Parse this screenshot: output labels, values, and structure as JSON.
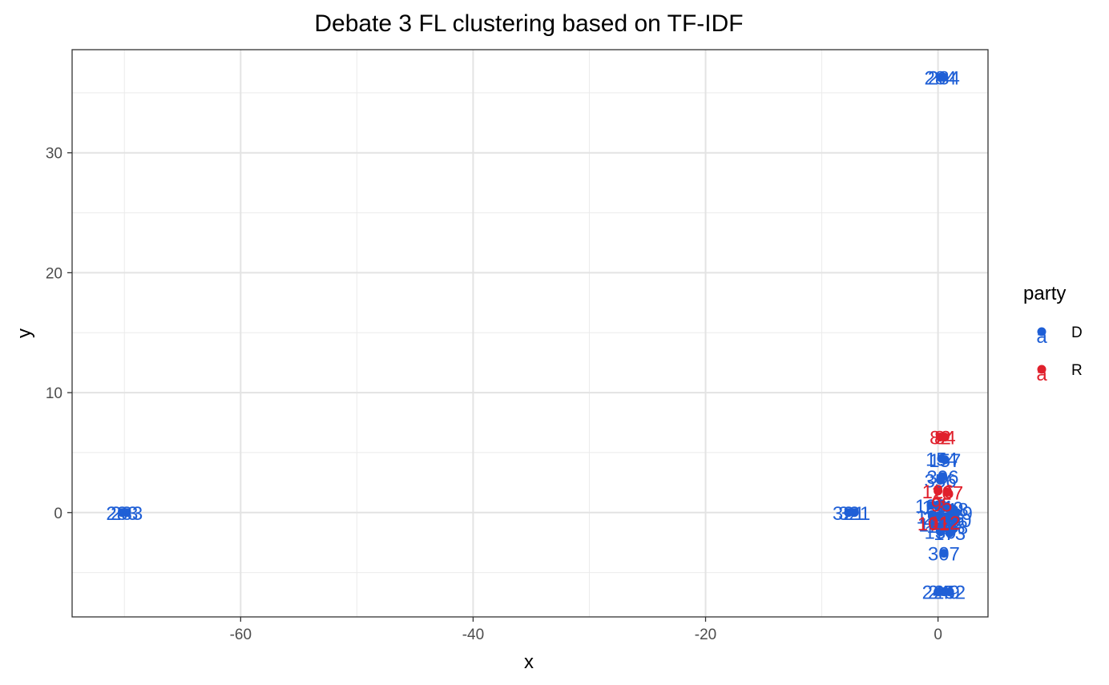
{
  "chart_data": {
    "type": "scatter",
    "title": "Debate 3 FL clustering based on TF-IDF",
    "xlabel": "x",
    "ylabel": "y",
    "xlim": [
      -74.5,
      4.3
    ],
    "ylim": [
      -8.7,
      38.6
    ],
    "x_ticks": [
      -60,
      -40,
      -20,
      0
    ],
    "y_ticks": [
      0,
      10,
      20,
      30
    ],
    "grid": true,
    "legend": {
      "title": "party",
      "position": "right",
      "entries": [
        {
          "name": "D",
          "color": "#1f5fd6"
        },
        {
          "name": "R",
          "color": "#e0202c"
        }
      ]
    },
    "series": [
      {
        "name": "D",
        "color": "#1f5fd6",
        "points": [
          {
            "x": 0.2,
            "y": 36.3,
            "label": "284"
          },
          {
            "x": 0.5,
            "y": 36.3,
            "label": "284"
          },
          {
            "x": -70.2,
            "y": 0.0,
            "label": "283"
          },
          {
            "x": -69.8,
            "y": 0.0,
            "label": "283"
          },
          {
            "x": -7.7,
            "y": 0.0,
            "label": "321"
          },
          {
            "x": -7.2,
            "y": 0.0,
            "label": "321"
          },
          {
            "x": 0.3,
            "y": 4.5,
            "label": "154"
          },
          {
            "x": 0.6,
            "y": 4.4,
            "label": "157"
          },
          {
            "x": 0.4,
            "y": 3.0,
            "label": "306"
          },
          {
            "x": 0.2,
            "y": 2.7,
            "label": "356"
          },
          {
            "x": 0.5,
            "y": -3.4,
            "label": "307"
          },
          {
            "x": 0.0,
            "y": -6.6,
            "label": "244"
          },
          {
            "x": 0.5,
            "y": -6.6,
            "label": "249"
          },
          {
            "x": 1.0,
            "y": -6.6,
            "label": "252"
          },
          {
            "x": -0.6,
            "y": 0.6,
            "label": "120"
          },
          {
            "x": 0.0,
            "y": 0.5,
            "label": "131"
          },
          {
            "x": 0.8,
            "y": 0.4,
            "label": "210"
          },
          {
            "x": 1.3,
            "y": 0.3,
            "label": "118"
          },
          {
            "x": -0.5,
            "y": -0.3,
            "label": "195"
          },
          {
            "x": 0.1,
            "y": -0.4,
            "label": "236"
          },
          {
            "x": 0.9,
            "y": -0.5,
            "label": "276"
          },
          {
            "x": 1.5,
            "y": -0.6,
            "label": "300"
          },
          {
            "x": -0.3,
            "y": -1.0,
            "label": "142"
          },
          {
            "x": 0.4,
            "y": -1.1,
            "label": "168"
          },
          {
            "x": 1.2,
            "y": -1.2,
            "label": "188"
          },
          {
            "x": 0.2,
            "y": -1.6,
            "label": "139"
          },
          {
            "x": 1.0,
            "y": -1.7,
            "label": "173"
          },
          {
            "x": 1.6,
            "y": 0.0,
            "label": "319"
          }
        ]
      },
      {
        "name": "R",
        "color": "#e0202c",
        "points": [
          {
            "x": 0.2,
            "y": 6.3,
            "label": "82"
          },
          {
            "x": 0.6,
            "y": 6.3,
            "label": "84"
          },
          {
            "x": 0.0,
            "y": 1.8,
            "label": "126"
          },
          {
            "x": 0.8,
            "y": 1.7,
            "label": "107"
          },
          {
            "x": 0.3,
            "y": 0.7,
            "label": "95"
          },
          {
            "x": -0.4,
            "y": -0.9,
            "label": "101"
          },
          {
            "x": 0.6,
            "y": -0.8,
            "label": "112"
          }
        ]
      }
    ]
  }
}
